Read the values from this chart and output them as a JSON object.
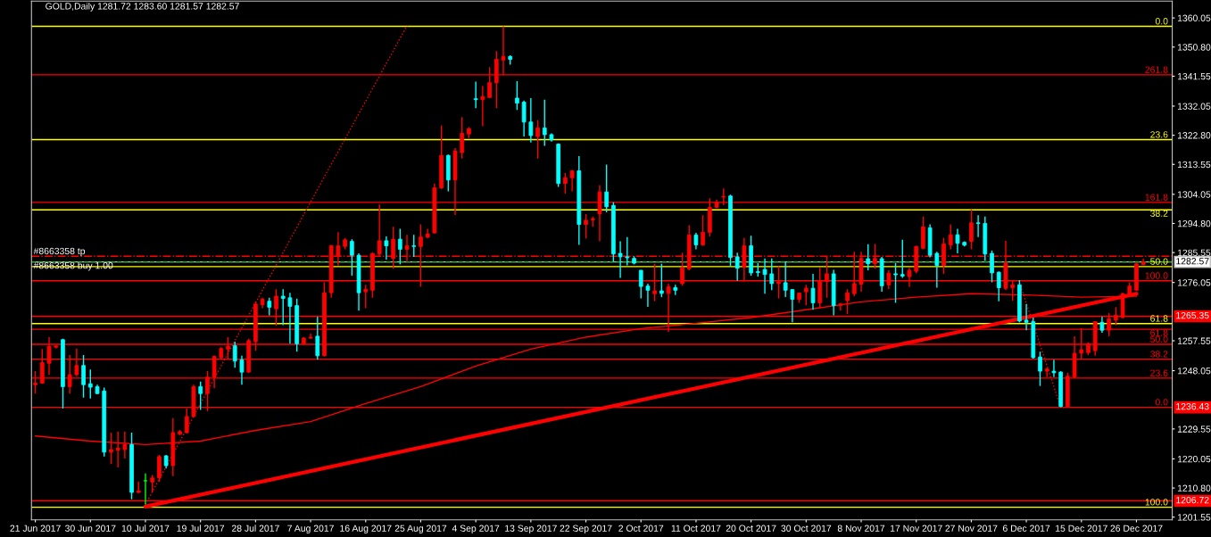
{
  "chart_data": {
    "type": "candlestick",
    "title": "GOLD,Daily 1281.72 1283.60 1281.57 1282.57",
    "categories": [
      "21 Jun 2017",
      null,
      null,
      null,
      null,
      null,
      null,
      null,
      "30 Jun 2017",
      null,
      null,
      null,
      null,
      null,
      null,
      null,
      "10 Jul 2017",
      null,
      null,
      null,
      null,
      null,
      null,
      null,
      "19 Jul 2017",
      null,
      null,
      null,
      null,
      null,
      null,
      null,
      "28 Jul 2017",
      null,
      null,
      null,
      null,
      null,
      null,
      null,
      "7 Aug 2017",
      null,
      null,
      null,
      null,
      null,
      null,
      null,
      "16 Aug 2017",
      null,
      null,
      null,
      null,
      null,
      null,
      null,
      "25 Aug 2017",
      null,
      null,
      null,
      null,
      null,
      null,
      null,
      "4 Sep 2017",
      null,
      null,
      null,
      null,
      null,
      null,
      null,
      "13 Sep 2017",
      null,
      null,
      null,
      null,
      null,
      null,
      null,
      "22 Sep 2017",
      null,
      null,
      null,
      null,
      null,
      null,
      null,
      "2 Oct 2017",
      null,
      null,
      null,
      null,
      null,
      null,
      null,
      "11 Oct 2017",
      null,
      null,
      null,
      null,
      null,
      null,
      null,
      "20 Oct 2017",
      null,
      null,
      null,
      null,
      null,
      null,
      null,
      "30 Oct 2017",
      null,
      null,
      null,
      null,
      null,
      null,
      null,
      "8 Nov 2017",
      null,
      null,
      null,
      null,
      null,
      null,
      null,
      "17 Nov 2017",
      null,
      null,
      null,
      null,
      null,
      null,
      null,
      "27 Nov 2017",
      null,
      null,
      null,
      null,
      null,
      null,
      null,
      "6 Dec 2017",
      null,
      null,
      null,
      null,
      null,
      null,
      null,
      "15 Dec 2017",
      null,
      null,
      null,
      null,
      null,
      null,
      null,
      "26 Dec 2017",
      null
    ],
    "ohlc": [
      [
        1243.6,
        1247.9,
        1240.8,
        1244.1
      ],
      [
        1244.1,
        1254.9,
        1243.9,
        1250.6
      ],
      [
        1250.4,
        1258.7,
        1246.8,
        1255.8
      ],
      [
        1255.5,
        1256.2,
        1255.1,
        1255.9
      ],
      [
        1257.9,
        1258.2,
        1236.0,
        1243.0
      ],
      [
        1243.0,
        1253.0,
        1240.8,
        1246.8
      ],
      [
        1246.8,
        1255.1,
        1246.3,
        1249.7
      ],
      [
        1249.7,
        1253.0,
        1239.5,
        1243.6
      ],
      [
        1243.9,
        1248.4,
        1239.2,
        1242.8
      ],
      [
        1243.0,
        1243.6,
        1240.6,
        1240.8
      ],
      [
        1241.6,
        1242.7,
        1220.8,
        1222.2
      ],
      [
        1222.2,
        1228.4,
        1218.4,
        1223.0
      ],
      [
        1222.8,
        1228.7,
        1217.3,
        1223.5
      ],
      [
        1223.0,
        1228.7,
        1220.2,
        1224.6
      ],
      [
        1224.6,
        1228.4,
        1207.2,
        1209.4
      ],
      [
        1209.4,
        1212.9,
        1209.2,
        1209.9
      ],
      [
        1213.1,
        1215.4,
        1205.6,
        1213.1
      ],
      [
        1212.7,
        1214.9,
        1209.4,
        1214.0
      ],
      [
        1214.0,
        1221.3,
        1212.7,
        1220.8
      ],
      [
        1221.0,
        1221.3,
        1217.0,
        1217.9
      ],
      [
        1217.9,
        1233.0,
        1214.6,
        1228.4
      ],
      [
        1227.9,
        1229.2,
        1227.6,
        1228.7
      ],
      [
        1228.4,
        1236.0,
        1228.1,
        1233.5
      ],
      [
        1233.5,
        1243.6,
        1233.3,
        1243.0
      ],
      [
        1243.0,
        1244.6,
        1235.6,
        1240.8
      ],
      [
        1240.8,
        1247.9,
        1235.2,
        1246.0
      ],
      [
        1246.0,
        1252.8,
        1242.5,
        1252.6
      ],
      [
        1252.2,
        1255.5,
        1251.9,
        1255.1
      ],
      [
        1254.9,
        1258.7,
        1251.9,
        1255.8
      ],
      [
        1256.0,
        1257.3,
        1249.0,
        1251.1
      ],
      [
        1251.5,
        1252.8,
        1243.6,
        1247.6
      ],
      [
        1247.6,
        1258.2,
        1247.4,
        1257.6
      ],
      [
        1257.3,
        1270.1,
        1254.4,
        1269.2
      ],
      [
        1269.0,
        1271.2,
        1267.9,
        1270.7
      ],
      [
        1270.1,
        1271.2,
        1265.6,
        1268.2
      ],
      [
        1267.7,
        1273.9,
        1262.3,
        1271.7
      ],
      [
        1271.7,
        1273.9,
        1262.5,
        1271.0
      ],
      [
        1271.2,
        1272.8,
        1256.6,
        1268.5
      ],
      [
        1268.7,
        1270.9,
        1254.1,
        1256.6
      ],
      [
        1256.6,
        1258.7,
        1256.2,
        1258.4
      ],
      [
        1258.4,
        1259.8,
        1258.2,
        1258.7
      ],
      [
        1259.0,
        1265.2,
        1251.5,
        1252.8
      ],
      [
        1252.8,
        1276.1,
        1252.6,
        1272.8
      ],
      [
        1272.8,
        1288.0,
        1271.2,
        1287.7
      ],
      [
        1284.4,
        1292.0,
        1281.5,
        1287.7
      ],
      [
        1287.5,
        1290.2,
        1286.6,
        1289.6
      ],
      [
        1289.1,
        1289.8,
        1278.2,
        1284.7
      ],
      [
        1284.7,
        1285.3,
        1267.1,
        1272.8
      ],
      [
        1273.1,
        1275.3,
        1267.9,
        1273.9
      ],
      [
        1273.6,
        1285.5,
        1271.2,
        1285.3
      ],
      [
        1285.1,
        1300.8,
        1284.4,
        1289.3
      ],
      [
        1289.3,
        1290.7,
        1283.3,
        1287.7
      ],
      [
        1283.7,
        1293.7,
        1280.4,
        1289.8
      ],
      [
        1289.8,
        1293.1,
        1281.8,
        1286.6
      ],
      [
        1286.6,
        1291.2,
        1282.6,
        1287.7
      ],
      [
        1287.7,
        1291.2,
        1284.2,
        1287.5
      ],
      [
        1287.5,
        1294.5,
        1274.7,
        1290.5
      ],
      [
        1290.4,
        1293.1,
        1290.2,
        1291.5
      ],
      [
        1291.8,
        1307.5,
        1291.6,
        1306.1
      ],
      [
        1306.1,
        1325.9,
        1305.7,
        1316.4
      ],
      [
        1316.4,
        1316.7,
        1305.0,
        1308.6
      ],
      [
        1308.6,
        1318.7,
        1297.5,
        1317.8
      ],
      [
        1317.3,
        1328.6,
        1315.4,
        1323.4
      ],
      [
        1323.2,
        1325.4,
        1321.9,
        1324.9
      ],
      [
        1334.4,
        1339.8,
        1331.4,
        1334.1
      ],
      [
        1334.1,
        1338.4,
        1325.7,
        1335.1
      ],
      [
        1334.8,
        1344.4,
        1334.6,
        1339.5
      ],
      [
        1339.5,
        1349.5,
        1331.4,
        1346.9
      ],
      [
        1346.7,
        1357.4,
        1341.9,
        1347.8
      ],
      [
        1347.8,
        1348.2,
        1345.2,
        1346.9
      ],
      [
        1334.6,
        1340.0,
        1330.8,
        1333.0
      ],
      [
        1333.3,
        1333.8,
        1322.4,
        1327.0
      ],
      [
        1327.0,
        1334.6,
        1320.5,
        1322.7
      ],
      [
        1322.4,
        1327.6,
        1315.4,
        1325.1
      ],
      [
        1325.1,
        1334.1,
        1319.4,
        1323.0
      ],
      [
        1323.0,
        1323.4,
        1320.8,
        1321.3
      ],
      [
        1320.0,
        1320.2,
        1306.4,
        1307.5
      ],
      [
        1307.5,
        1310.8,
        1304.3,
        1309.3
      ],
      [
        1309.3,
        1311.7,
        1305.0,
        1311.5
      ],
      [
        1311.5,
        1316.2,
        1288.0,
        1294.5
      ],
      [
        1294.5,
        1297.8,
        1290.0,
        1295.8
      ],
      [
        1295.9,
        1297.0,
        1293.7,
        1296.3
      ],
      [
        1297.8,
        1307.0,
        1289.1,
        1304.8
      ],
      [
        1304.8,
        1313.5,
        1298.3,
        1300.1
      ],
      [
        1300.5,
        1301.5,
        1282.6,
        1285.1
      ],
      [
        1285.3,
        1289.1,
        1277.5,
        1284.2
      ],
      [
        1284.2,
        1290.5,
        1281.5,
        1283.9
      ],
      [
        1283.7,
        1284.4,
        1281.8,
        1282.2
      ],
      [
        1279.9,
        1280.1,
        1271.0,
        1274.8
      ],
      [
        1274.9,
        1275.7,
        1268.3,
        1273.6
      ],
      [
        1272.5,
        1282.0,
        1270.1,
        1273.4
      ],
      [
        1273.4,
        1282.0,
        1271.4,
        1272.6
      ],
      [
        1272.6,
        1275.7,
        1260.4,
        1274.7
      ],
      [
        1274.4,
        1275.3,
        1272.1,
        1273.6
      ],
      [
        1275.7,
        1285.5,
        1275.0,
        1280.7
      ],
      [
        1280.4,
        1294.2,
        1279.9,
        1291.1
      ],
      [
        1291.1,
        1291.8,
        1286.6,
        1288.0
      ],
      [
        1288.0,
        1297.4,
        1287.7,
        1292.0
      ],
      [
        1292.0,
        1302.8,
        1290.7,
        1299.9
      ],
      [
        1299.9,
        1302.4,
        1299.6,
        1301.5
      ],
      [
        1303.2,
        1305.9,
        1300.7,
        1303.4
      ],
      [
        1303.5,
        1303.9,
        1281.2,
        1284.0
      ],
      [
        1284.2,
        1285.5,
        1276.6,
        1280.6
      ],
      [
        1280.9,
        1290.2,
        1276.4,
        1287.7
      ],
      [
        1287.7,
        1290.9,
        1278.2,
        1279.1
      ],
      [
        1279.5,
        1282.2,
        1277.9,
        1279.2
      ],
      [
        1280.2,
        1283.7,
        1272.5,
        1278.6
      ],
      [
        1278.8,
        1283.7,
        1273.6,
        1275.7
      ],
      [
        1275.7,
        1281.2,
        1271.0,
        1276.1
      ],
      [
        1276.0,
        1282.6,
        1271.4,
        1273.6
      ],
      [
        1273.8,
        1273.9,
        1263.4,
        1270.7
      ],
      [
        1270.7,
        1272.8,
        1269.6,
        1272.7
      ],
      [
        1273.1,
        1275.3,
        1268.8,
        1274.2
      ],
      [
        1274.2,
        1278.8,
        1267.4,
        1269.6
      ],
      [
        1269.6,
        1280.7,
        1267.9,
        1276.4
      ],
      [
        1276.4,
        1284.4,
        1271.2,
        1278.8
      ],
      [
        1278.8,
        1280.1,
        1265.6,
        1268.7
      ],
      [
        1268.8,
        1269.6,
        1267.1,
        1269.2
      ],
      [
        1270.3,
        1273.9,
        1266.0,
        1272.8
      ],
      [
        1272.5,
        1285.8,
        1271.7,
        1275.7
      ],
      [
        1275.5,
        1285.8,
        1273.1,
        1283.7
      ],
      [
        1283.6,
        1288.2,
        1279.9,
        1282.0
      ],
      [
        1282.0,
        1288.3,
        1280.4,
        1283.7
      ],
      [
        1283.6,
        1284.2,
        1273.1,
        1275.0
      ],
      [
        1275.3,
        1279.9,
        1273.9,
        1279.0
      ],
      [
        1278.8,
        1282.2,
        1269.6,
        1278.5
      ],
      [
        1278.6,
        1289.6,
        1277.5,
        1278.1
      ],
      [
        1277.9,
        1280.7,
        1274.7,
        1279.9
      ],
      [
        1279.6,
        1287.7,
        1279.0,
        1287.5
      ],
      [
        1286.9,
        1297.0,
        1286.6,
        1293.7
      ],
      [
        1293.4,
        1294.5,
        1284.0,
        1284.7
      ],
      [
        1285.3,
        1285.8,
        1274.4,
        1281.5
      ],
      [
        1281.5,
        1290.2,
        1278.8,
        1288.3
      ],
      [
        1288.0,
        1294.5,
        1286.6,
        1291.2
      ],
      [
        1291.2,
        1293.1,
        1285.3,
        1288.5
      ],
      [
        1288.8,
        1289.1,
        1287.5,
        1287.9
      ],
      [
        1289.1,
        1299.2,
        1286.6,
        1295.0
      ],
      [
        1295.0,
        1297.4,
        1290.5,
        1294.8
      ],
      [
        1294.8,
        1297.0,
        1282.9,
        1285.1
      ],
      [
        1285.3,
        1286.2,
        1276.1,
        1279.1
      ],
      [
        1279.3,
        1279.6,
        1270.1,
        1274.4
      ],
      [
        1274.2,
        1289.3,
        1273.6,
        1282.2
      ],
      [
        1274.4,
        1276.8,
        1270.3,
        1275.3
      ],
      [
        1275.3,
        1276.8,
        1263.4,
        1263.8
      ],
      [
        1264.1,
        1269.2,
        1260.9,
        1263.4
      ],
      [
        1263.6,
        1264.9,
        1251.9,
        1252.2
      ],
      [
        1252.4,
        1254.1,
        1243.2,
        1247.9
      ],
      [
        1247.9,
        1249.0,
        1246.0,
        1248.6
      ],
      [
        1247.9,
        1251.5,
        1246.0,
        1247.4
      ],
      [
        1247.6,
        1247.9,
        1236.4,
        1236.7
      ],
      [
        1236.7,
        1247.4,
        1236.5,
        1246.3
      ],
      [
        1246.0,
        1259.0,
        1245.7,
        1253.6
      ],
      [
        1253.6,
        1261.6,
        1251.7,
        1254.7
      ],
      [
        1253.8,
        1257.1,
        1253.0,
        1256.6
      ],
      [
        1254.4,
        1263.8,
        1252.8,
        1263.6
      ],
      [
        1263.4,
        1265.2,
        1260.1,
        1260.9
      ],
      [
        1260.9,
        1266.3,
        1259.0,
        1264.5
      ],
      [
        1264.1,
        1268.2,
        1262.5,
        1265.6
      ],
      [
        1264.9,
        1272.8,
        1264.7,
        1272.5
      ],
      [
        1272.3,
        1276.1,
        1271.7,
        1274.9
      ],
      [
        1273.6,
        1282.2,
        1273.4,
        1282.0
      ],
      [
        1281.72,
        1283.6,
        1281.57,
        1282.57
      ]
    ],
    "colors": [
      "#ff0000",
      "#ff0000",
      "#ff0000",
      "#ff0000",
      "#00ffff",
      "#ff0000",
      "#ff0000",
      "#00ffff",
      "#00ffff",
      "#00ffff",
      "#00ffff",
      "#ff0000",
      "#ff0000",
      "#ff0000",
      "#00ffff",
      "#ff0000",
      "#00ff00",
      "#ff0000",
      "#ff0000",
      "#00ffff",
      "#ff0000",
      "#ff0000",
      "#ff0000",
      "#ff0000",
      "#00ffff",
      "#ff0000",
      "#ff0000",
      "#ff0000",
      "#ff0000",
      "#00ffff",
      "#00ffff",
      "#ff0000",
      "#ff0000",
      "#ff0000",
      "#00ffff",
      "#ff0000",
      "#00ffff",
      "#00ffff",
      "#00ffff",
      "#ff0000",
      "#ff0000",
      "#00ffff",
      "#ff0000",
      "#ff0000",
      "#ff0000",
      "#ff0000",
      "#00ffff",
      "#00ffff",
      "#ff0000",
      "#ff0000",
      "#ff0000",
      "#00ffff",
      "#ff0000",
      "#00ffff",
      "#ff0000",
      "#00ffff",
      "#ff0000",
      "#ff0000",
      "#ff0000",
      "#ff0000",
      "#00ffff",
      "#ff0000",
      "#ff0000",
      "#ff0000",
      "#00ffff",
      "#ff0000",
      "#ff0000",
      "#ff0000",
      "#ff0000",
      "#00ffff",
      "#00ffff",
      "#00ffff",
      "#00ffff",
      "#ff0000",
      "#00ffff",
      "#00ffff",
      "#00ffff",
      "#ff0000",
      "#ff0000",
      "#00ffff",
      "#ff0000",
      "#ff0000",
      "#ff0000",
      "#00ffff",
      "#00ffff",
      "#00ffff",
      "#00ffff",
      "#00ffff",
      "#00ffff",
      "#00ffff",
      "#ff0000",
      "#00ffff",
      "#ff0000",
      "#00ffff",
      "#ff0000",
      "#ff0000",
      "#00ffff",
      "#ff0000",
      "#ff0000",
      "#ff0000",
      "#ff0000",
      "#00ffff",
      "#00ffff",
      "#ff0000",
      "#00ffff",
      "#00ffff",
      "#00ffff",
      "#00ffff",
      "#ff0000",
      "#00ffff",
      "#00ffff",
      "#ff0000",
      "#ff0000",
      "#00ffff",
      "#ff0000",
      "#ff0000",
      "#00ffff",
      "#ff0000",
      "#ff0000",
      "#ff0000",
      "#ff0000",
      "#00ffff",
      "#ff0000",
      "#00ffff",
      "#ff0000",
      "#00ffff",
      "#00ffff",
      "#ff0000",
      "#ff0000",
      "#ff0000",
      "#00ffff",
      "#00ffff",
      "#ff0000",
      "#ff0000",
      "#00ffff",
      "#00ffff",
      "#ff0000",
      "#00ffff",
      "#00ffff",
      "#00ffff",
      "#00ffff",
      "#ff0000",
      "#ff0000",
      "#00ffff",
      "#00ffff",
      "#00ffff",
      "#00ffff",
      "#ff0000",
      "#00ffff",
      "#00ffff",
      "#ff0000",
      "#ff0000",
      "#ff0000",
      "#ff0000",
      "#ff0000",
      "#00ffff",
      "#ff0000",
      "#ff0000",
      "#ff0000",
      "#ff0000",
      "#ff0000",
      "#ff0000"
    ],
    "series": [
      {
        "type": "line",
        "color": "#ff0000",
        "x": [
          "21 Jun 2017",
          "30 Jun 2017",
          "10 Jul 2017",
          "19 Jul 2017",
          "28 Jul 2017",
          "7 Aug 2017",
          "16 Aug 2017",
          "25 Aug 2017",
          "4 Sep 2017",
          "13 Sep 2017",
          "22 Sep 2017",
          "2 Oct 2017",
          "11 Oct 2017",
          "20 Oct 2017",
          "30 Oct 2017",
          "8 Nov 2017",
          "17 Nov 2017",
          "27 Nov 2017",
          "6 Dec 2017",
          "15 Dec 2017",
          "26 Dec 2017"
        ],
        "values": [
          1227.3,
          1225.7,
          1224.6,
          1225.7,
          1229.1,
          1231.9,
          1237.6,
          1243.0,
          1249.5,
          1254.9,
          1258.7,
          1261.4,
          1263.1,
          1264.9,
          1267.4,
          1269.9,
          1271.4,
          1272.5,
          1272.1,
          1271.4,
          1271.7
        ]
      },
      {
        "type": "line",
        "color": "#ff0000",
        "x": [
          "10 Jul 2017",
          "26 Dec 2017"
        ],
        "values": [
          1204.9,
          1272.5
        ]
      },
      {
        "type": "line",
        "color": "#ff0000",
        "line_style": "dotted",
        "values": [
          null,
          null,
          null,
          null,
          null,
          null,
          null,
          null,
          null,
          null,
          null,
          null,
          null,
          null,
          null,
          null,
          1205.6,
          1209.6,
          1213.6,
          1217.6,
          1221.6,
          1225.6,
          1229.6,
          1233.6,
          1237.6,
          1241.6,
          1245.6,
          1249.6,
          1253.6,
          1257.6,
          1261.6,
          1265.6,
          1269.6,
          1273.6,
          1277.6,
          1281.6,
          1285.6,
          1289.6,
          1293.6,
          1297.6,
          1301.6,
          1305.6,
          1309.6,
          1313.6,
          1317.6,
          1321.6,
          1325.6,
          1329.6,
          1333.6,
          1337.6,
          1341.6,
          1345.6,
          1349.6,
          1353.6,
          1357.6,
          null,
          null,
          null,
          null,
          null,
          null,
          null,
          null,
          null,
          null,
          null,
          null,
          null,
          null,
          null,
          null,
          null,
          null,
          null,
          null,
          null,
          null,
          null,
          null,
          null,
          null,
          null,
          null,
          null,
          null,
          null,
          null,
          null,
          null,
          null,
          null,
          null,
          null,
          null,
          null,
          null,
          null,
          null,
          null,
          null,
          null,
          null,
          null,
          null,
          null,
          null,
          null,
          null,
          null,
          null,
          null,
          null,
          null,
          null,
          null,
          null,
          null,
          null,
          null,
          null,
          null,
          null,
          null,
          null,
          null,
          null,
          null,
          null,
          null,
          null,
          null,
          null,
          null,
          null,
          null,
          null,
          null,
          null,
          null,
          null,
          null,
          null,
          null,
          null,
          null,
          null,
          null,
          null,
          null,
          null,
          null,
          null,
          null,
          null,
          null,
          null,
          null,
          null,
          null,
          null,
          null,
          null
        ]
      },
      {
        "type": "line",
        "color": "#ff0000",
        "line_style": "dotted",
        "values": [
          null,
          null,
          null,
          null,
          null,
          null,
          null,
          null,
          null,
          null,
          null,
          null,
          null,
          null,
          null,
          null,
          null,
          null,
          null,
          null,
          null,
          null,
          null,
          null,
          null,
          null,
          null,
          null,
          null,
          null,
          null,
          null,
          null,
          null,
          null,
          null,
          null,
          null,
          null,
          null,
          null,
          null,
          null,
          null,
          null,
          null,
          null,
          null,
          null,
          null,
          null,
          null,
          null,
          null,
          null,
          null,
          null,
          null,
          null,
          null,
          null,
          null,
          null,
          null,
          null,
          null,
          null,
          null,
          null,
          null,
          null,
          null,
          null,
          null,
          null,
          null,
          null,
          null,
          null,
          null,
          null,
          null,
          null,
          null,
          null,
          null,
          null,
          null,
          null,
          null,
          null,
          null,
          null,
          null,
          null,
          null,
          null,
          null,
          null,
          null,
          null,
          null,
          null,
          null,
          null,
          null,
          null,
          null,
          null,
          null,
          null,
          null,
          null,
          null,
          null,
          null,
          null,
          null,
          null,
          null,
          null,
          null,
          null,
          null,
          null,
          null,
          null,
          null,
          null,
          null,
          null,
          null,
          null,
          null,
          null,
          null,
          null,
          null,
          null,
          null,
          null,
          null,
          null,
          1276.0,
          1269.4,
          1262.8,
          1256.2,
          1249.6,
          1243.0,
          1236.4,
          null,
          null,
          null,
          null,
          null,
          null,
          null,
          null,
          null,
          null,
          null,
          null
        ]
      }
    ],
    "ref_lines": [
      {
        "axis": "y",
        "value": 1357.4,
        "color": "#ffff00"
      },
      {
        "axis": "y",
        "value": 1321.4,
        "color": "#ffff00"
      },
      {
        "axis": "y",
        "value": 1299.1,
        "color": "#ffff00"
      },
      {
        "axis": "y",
        "value": 1281.1,
        "color": "#ffff00"
      },
      {
        "axis": "y",
        "value": 1263.0,
        "color": "#ffff00"
      },
      {
        "axis": "y",
        "value": 1204.7,
        "color": "#ffff00"
      },
      {
        "axis": "y",
        "value": 1342.0,
        "color": "#ff0000"
      },
      {
        "axis": "y",
        "value": 1301.5,
        "color": "#ff0000"
      },
      {
        "axis": "y",
        "value": 1276.6,
        "color": "#ff0000"
      },
      {
        "axis": "y",
        "value": 1261.2,
        "color": "#ff0000"
      },
      {
        "axis": "y",
        "value": 1256.4,
        "color": "#ff0000"
      },
      {
        "axis": "y",
        "value": 1251.7,
        "color": "#ff0000"
      },
      {
        "axis": "y",
        "value": 1245.7,
        "color": "#ff0000"
      },
      {
        "axis": "y",
        "value": 1236.43,
        "label": "1236.43",
        "color": "#ff0000"
      },
      {
        "axis": "y",
        "value": 1282.57,
        "label": "1282.57",
        "color": "#c0c0c0"
      },
      {
        "axis": "y",
        "value": 1265.35,
        "label": "1265.35",
        "color": "#ff0000"
      },
      {
        "axis": "y",
        "value": 1206.72,
        "label": "1206.72",
        "color": "#ff0000"
      },
      {
        "axis": "y",
        "value": 1284.4,
        "label": "#8663358 tp",
        "color": "#ff0000",
        "line_style": "dashdot"
      },
      {
        "axis": "y",
        "value": 1282.57,
        "label": "#8663358 buy 1.00",
        "color": "#00c000",
        "line_style": "dashed"
      }
    ],
    "annotations": [
      {
        "text": "0.0",
        "x": "26 Dec 2017",
        "y": 1357.4
      },
      {
        "text": "23.6",
        "x": "26 Dec 2017",
        "y": 1321.4
      },
      {
        "text": "38.2",
        "x": "26 Dec 2017",
        "y": 1299.1
      },
      {
        "text": "50.0",
        "x": "26 Dec 2017",
        "y": 1281.1
      },
      {
        "text": "61.8",
        "x": "26 Dec 2017",
        "y": 1263.0
      },
      {
        "text": "100.0",
        "x": "26 Dec 2017",
        "y": 1204.7
      },
      {
        "text": "261.8",
        "x": "26 Dec 2017",
        "y": 1342.0
      },
      {
        "text": "161.8",
        "x": "26 Dec 2017",
        "y": 1301.5
      },
      {
        "text": "100.0",
        "x": "26 Dec 2017",
        "y": 1276.6
      },
      {
        "text": "61.8",
        "x": "26 Dec 2017",
        "y": 1261.2
      },
      {
        "text": "50.0",
        "x": "26 Dec 2017",
        "y": 1256.4
      },
      {
        "text": "38.2",
        "x": "26 Dec 2017",
        "y": 1251.7
      },
      {
        "text": "23.6",
        "x": "26 Dec 2017",
        "y": 1245.7
      },
      {
        "text": "0.0",
        "x": "26 Dec 2017",
        "y": 1236.43
      }
    ],
    "ylim": [
      1200.7,
      1365.4
    ],
    "yticks": [
      1360.05,
      {
        "value": 1350.8,
        "label": "1350.80"
      },
      1341.55,
      1332.05,
      {
        "value": 1322.8,
        "label": "1322.80"
      },
      1313.55,
      1304.05,
      {
        "value": 1294.8,
        "label": "1294.80"
      },
      1285.55,
      1276.05,
      1257.55,
      1248.05,
      1229.55,
      1220.05,
      {
        "value": 1210.8,
        "label": "1210.80"
      },
      1201.55
    ]
  }
}
